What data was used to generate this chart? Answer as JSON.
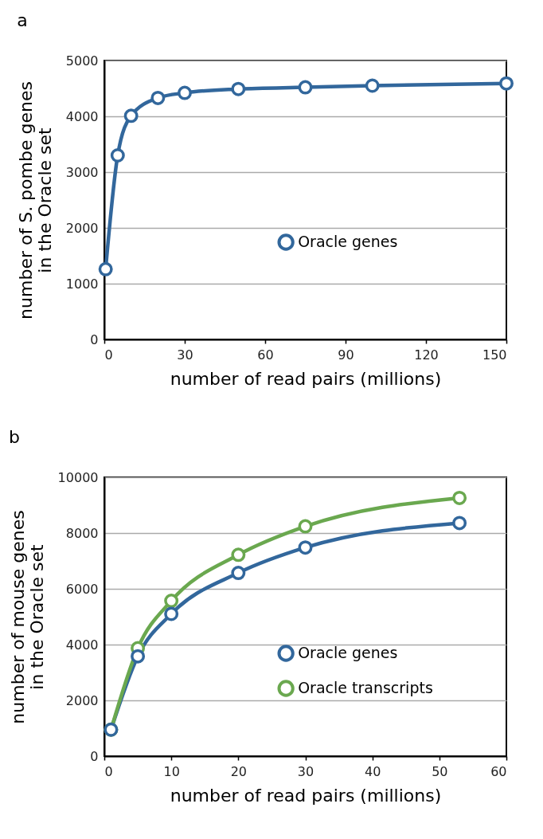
{
  "chart_data": [
    {
      "type": "line",
      "title": "a",
      "xlabel": "number of read pairs (millions)",
      "ylabel": "number of S. pombe genes\nin the Oracle set",
      "xlim": [
        0,
        150
      ],
      "xticks": [
        0,
        30,
        60,
        90,
        120,
        150
      ],
      "ylim": [
        0,
        5000
      ],
      "yticks": [
        0,
        1000,
        2000,
        3000,
        4000,
        5000
      ],
      "grid": "y",
      "legend": "right",
      "marker": "circle",
      "series": [
        {
          "name": "Oracle genes",
          "color": "#32679c",
          "x": [
            0.5,
            5,
            10,
            20,
            30,
            50,
            75,
            100,
            150
          ],
          "values": [
            1260,
            3300,
            4010,
            4330,
            4420,
            4490,
            4520,
            4550,
            4590
          ]
        }
      ]
    },
    {
      "type": "line",
      "title": "b",
      "xlabel": "number of read pairs (millions)",
      "ylabel": "number of mouse genes\nin the Oracle set",
      "xlim": [
        0,
        60
      ],
      "xticks": [
        0,
        10,
        20,
        30,
        40,
        50,
        60
      ],
      "ylim": [
        0,
        10000
      ],
      "yticks": [
        0,
        2000,
        4000,
        6000,
        8000,
        10000
      ],
      "grid": "y",
      "legend": "bottom right",
      "marker": "circle",
      "series": [
        {
          "name": "Oracle genes",
          "color": "#32679c",
          "x": [
            1,
            5,
            10,
            20,
            30,
            53
          ],
          "values": [
            950,
            3580,
            5100,
            6570,
            7480,
            8360
          ]
        },
        {
          "name": "Oracle transcripts",
          "color": "#6aa84f",
          "x": [
            1,
            5,
            10,
            20,
            30,
            53
          ],
          "values": [
            950,
            3870,
            5570,
            7220,
            8240,
            9260
          ]
        }
      ]
    }
  ]
}
